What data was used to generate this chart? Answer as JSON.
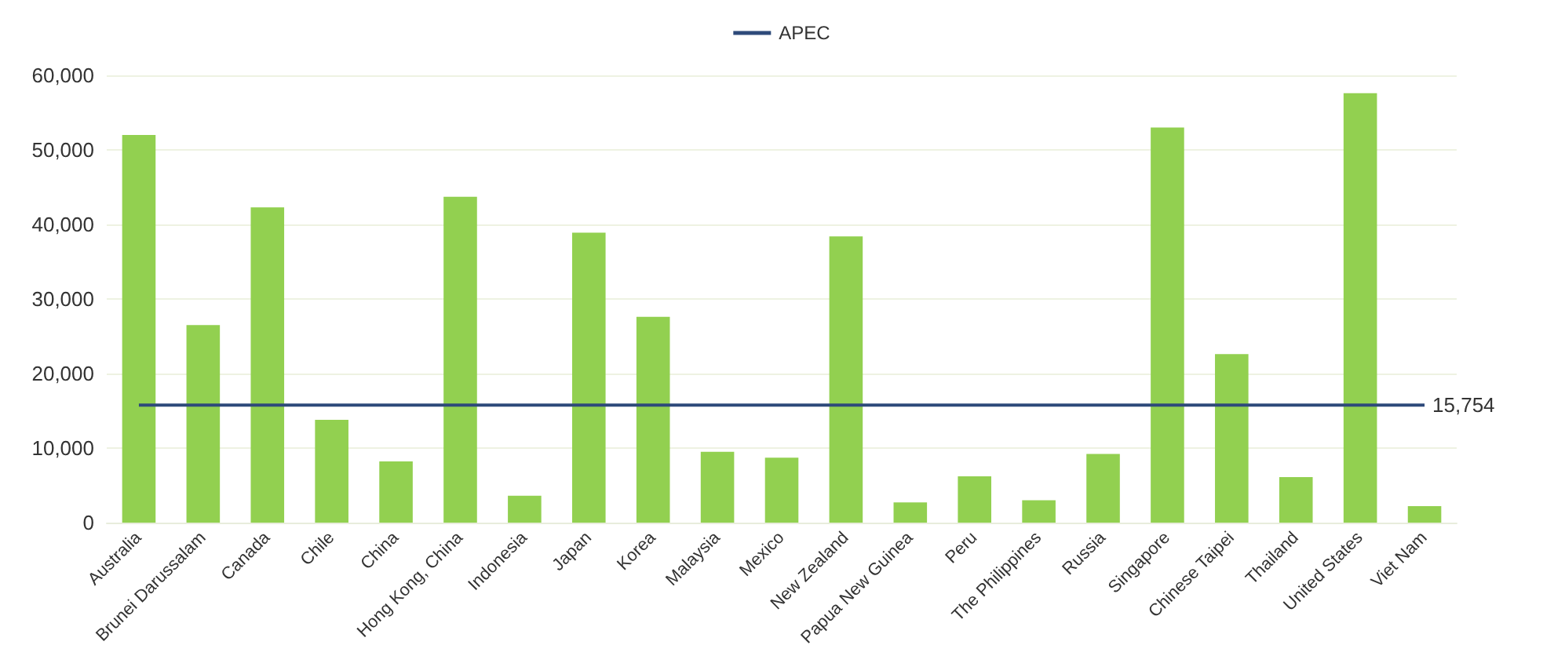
{
  "chart_data": {
    "type": "bar",
    "categories": [
      "Australia",
      "Brunei Darussalam",
      "Canada",
      "Chile",
      "China",
      "Hong Kong, China",
      "Indonesia",
      "Japan",
      "Korea",
      "Malaysia",
      "Mexico",
      "New Zealand",
      "Papua New Guinea",
      "Peru",
      "The Philippines",
      "Russia",
      "Singapore",
      "Chinese Taipei",
      "Thailand",
      "United States",
      "Viet Nam"
    ],
    "series": [
      {
        "color": "#92d050",
        "values": [
          52000,
          26500,
          42300,
          13800,
          8200,
          43700,
          3600,
          38900,
          27600,
          9500,
          8700,
          38400,
          2700,
          6200,
          3000,
          9200,
          53000,
          22600,
          6100,
          57600,
          2200
        ]
      },
      {
        "type": "line",
        "name": "APEC",
        "color": "#2e4a7a",
        "values": [
          15754,
          15754,
          15754,
          15754,
          15754,
          15754,
          15754,
          15754,
          15754,
          15754,
          15754,
          15754,
          15754,
          15754,
          15754,
          15754,
          15754,
          15754,
          15754,
          15754,
          15754
        ],
        "value_labels": [
          null,
          null,
          null,
          null,
          null,
          null,
          null,
          null,
          null,
          null,
          null,
          null,
          null,
          null,
          null,
          null,
          null,
          null,
          null,
          null,
          "15,754"
        ]
      }
    ],
    "ylim": [
      0,
      60000
    ],
    "yticks": [
      0,
      {
        "value": 10000,
        "label": "10,000"
      },
      {
        "value": 20000,
        "label": "20,000"
      },
      {
        "value": 30000,
        "label": "30,000"
      },
      {
        "value": 40000,
        "label": "40,000"
      },
      {
        "value": 50000,
        "label": "50,000"
      },
      {
        "value": 60000,
        "label": "60,000"
      }
    ],
    "grid": "y",
    "legend": "top",
    "marker": "none"
  }
}
